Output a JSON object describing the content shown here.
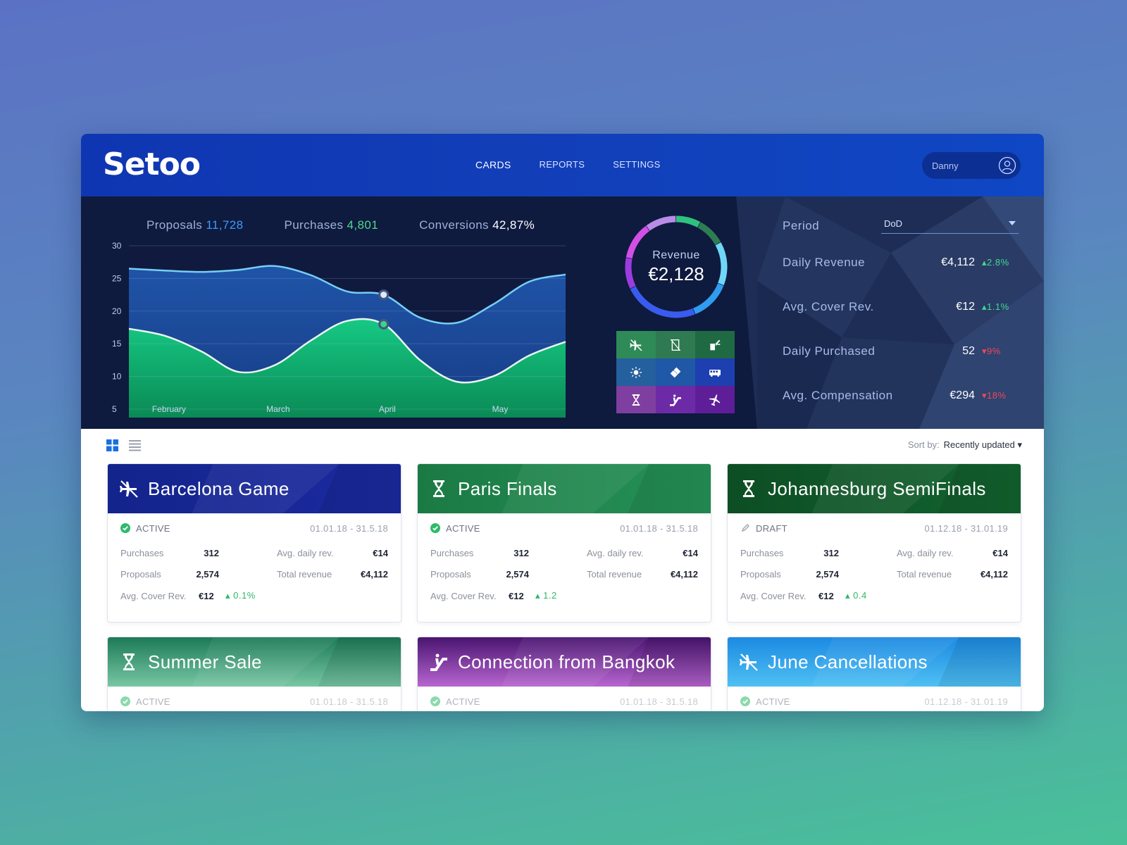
{
  "app": {
    "logo": "Setoo"
  },
  "nav": {
    "items": [
      "CARDS",
      "REPORTS",
      "SETTINGS"
    ],
    "active": "CARDS"
  },
  "user": {
    "name": "Danny"
  },
  "kpis": {
    "proposals_label": "Proposals",
    "proposals_value": "11,728",
    "purchases_label": "Purchases",
    "purchases_value": "4,801",
    "conversions_label": "Conversions",
    "conversions_value": "42,87%"
  },
  "chart_data": {
    "type": "area",
    "categories": [
      "February",
      "March",
      "April",
      "May"
    ],
    "x": [
      0,
      1,
      2,
      3,
      4,
      5,
      6,
      7,
      8,
      9,
      10,
      11,
      12
    ],
    "ylim": [
      5,
      30
    ],
    "yticks": [
      5,
      10,
      15,
      20,
      25,
      30
    ],
    "series": [
      {
        "values": [
          26.5,
          26.2,
          26,
          26.3,
          26.9,
          25.5,
          23,
          22.5,
          19,
          18.2,
          21,
          24.5,
          25.6
        ],
        "color": "#6fcdf5"
      },
      {
        "values": [
          17.3,
          16.2,
          13.8,
          10.7,
          11.7,
          15.5,
          18.5,
          18,
          12.5,
          9.2,
          10,
          13.2,
          15.3
        ],
        "color": "#2fd38a"
      }
    ]
  },
  "revenue": {
    "label": "Revenue",
    "value": "€2,128",
    "segments": [
      {
        "value": 8,
        "color": "#2ec27e"
      },
      {
        "value": 9,
        "color": "#2e7d52"
      },
      {
        "value": 14,
        "color": "#6fd6f6"
      },
      {
        "value": 13,
        "color": "#2f9cf0"
      },
      {
        "value": 24,
        "color": "#3a5bef"
      },
      {
        "value": 10,
        "color": "#9b3ce0"
      },
      {
        "value": 12,
        "color": "#d24fe6"
      },
      {
        "value": 10,
        "color": "#b98be8"
      }
    ]
  },
  "category_icons": [
    {
      "icon": "flight-icon",
      "color": "#2e8a57"
    },
    {
      "icon": "hotel-cancel-icon",
      "color": "#2f7a50"
    },
    {
      "icon": "hotel-flight-icon",
      "color": "#1f6a43"
    },
    {
      "icon": "sun-icon",
      "color": "#245f9e"
    },
    {
      "icon": "ticket-icon",
      "color": "#1f58a6"
    },
    {
      "icon": "bus-icon",
      "color": "#1d3fb0"
    },
    {
      "icon": "hourglass-icon",
      "color": "#7e3fa0"
    },
    {
      "icon": "escalator-icon",
      "color": "#6d2aa6"
    },
    {
      "icon": "airplane-icon",
      "color": "#5e1e98"
    }
  ],
  "metrics": {
    "period_label": "Period",
    "period_value": "DoD",
    "rows": [
      {
        "label": "Daily Revenue",
        "value": "€4,112",
        "delta": "2.8%",
        "dir": "up"
      },
      {
        "label": "Avg. Cover Rev.",
        "value": "€12",
        "delta": "1.1%",
        "dir": "up"
      },
      {
        "label": "Daily Purchased",
        "value": "52",
        "delta": "9%",
        "dir": "down"
      },
      {
        "label": "Avg. Compensation",
        "value": "€294",
        "delta": "18%",
        "dir": "down"
      }
    ]
  },
  "sort": {
    "label": "Sort by:",
    "value": "Recently updated"
  },
  "cards": [
    {
      "title": "Barcelona Game",
      "icon": "flight-icon",
      "colors": [
        "#13248c",
        "#1b2aa0"
      ],
      "status": "ACTIVE",
      "dates": "01.01.18 - 31.5.18",
      "purchases": "312",
      "proposals": "2,574",
      "avg_cover": "€12",
      "avg_cover_delta": "0.1%",
      "avg_daily": "€14",
      "total_rev": "€4,112"
    },
    {
      "title": "Paris Finals",
      "icon": "hourglass-icon",
      "colors": [
        "#1b7a44",
        "#259257"
      ],
      "status": "ACTIVE",
      "dates": "01.01.18 - 31.5.18",
      "purchases": "312",
      "proposals": "2,574",
      "avg_cover": "€12",
      "avg_cover_delta": "1.2",
      "avg_daily": "€14",
      "total_rev": "€4,112"
    },
    {
      "title": "Johannesburg SemiFinals",
      "icon": "hourglass-icon",
      "colors": [
        "#0d4e24",
        "#13632f"
      ],
      "status": "DRAFT",
      "dates": "01.12.18 - 31.01.19",
      "purchases": "312",
      "proposals": "2,574",
      "avg_cover": "€12",
      "avg_cover_delta": "0.4",
      "avg_daily": "€14",
      "total_rev": "€4,112"
    },
    {
      "title": "Summer Sale",
      "icon": "hourglass-icon",
      "colors": [
        "#1c7a57",
        "#78c7a4"
      ],
      "status": "ACTIVE",
      "dates": "01.01.18 - 31.5.18"
    },
    {
      "title": "Connection from Bangkok",
      "icon": "escalator-icon",
      "colors": [
        "#4a1470",
        "#b766d0"
      ],
      "status": "ACTIVE",
      "dates": "01.01.18 - 31.5.18"
    },
    {
      "title": "June Cancellations",
      "icon": "flight-icon",
      "colors": [
        "#1c8ae2",
        "#4fc0f3"
      ],
      "status": "ACTIVE",
      "dates": "01.12.18 - 31.01.19"
    }
  ],
  "card_labels": {
    "purchases": "Purchases",
    "proposals": "Proposals",
    "avg_cover": "Avg. Cover Rev.",
    "avg_daily": "Avg. daily rev.",
    "total_rev": "Total revenue"
  }
}
